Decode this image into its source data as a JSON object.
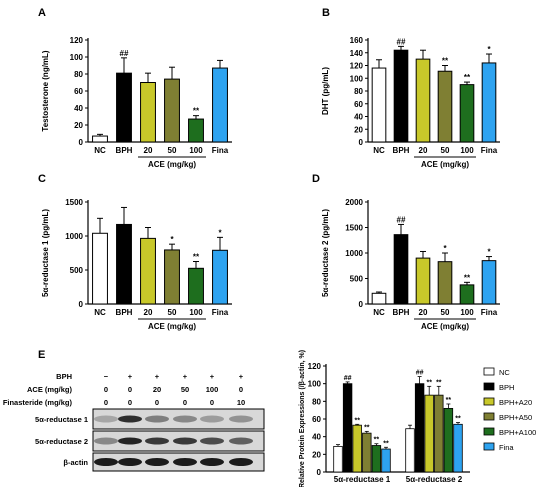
{
  "panels": {
    "A": "A",
    "B": "B",
    "C": "C",
    "D": "D",
    "E": "E"
  },
  "colors": {
    "NC": "#ffffff",
    "BPH": "#000000",
    "A20": "#c8c82a",
    "A50": "#7f7f33",
    "A100": "#1e6e1e",
    "Fina": "#2ea3f0"
  },
  "chart_data": [
    {
      "id": "A",
      "type": "bar",
      "ylabel": "Testosterone (ng/mL)",
      "categories": [
        "NC",
        "BPH",
        "20",
        "50",
        "100",
        "Fina"
      ],
      "group_label": "ACE (mg/kg)",
      "values": [
        7,
        81,
        70,
        74,
        27,
        87
      ],
      "errors": [
        2,
        18,
        11,
        14,
        4,
        9
      ],
      "marks": [
        "",
        "##",
        "",
        "",
        "**",
        ""
      ],
      "ylim": [
        0,
        120
      ],
      "yticks": [
        0,
        20,
        40,
        60,
        80,
        100,
        120
      ]
    },
    {
      "id": "B",
      "type": "bar",
      "ylabel": "DHT (pg/mL)",
      "categories": [
        "NC",
        "BPH",
        "20",
        "50",
        "100",
        "Fina"
      ],
      "group_label": "ACE (mg/kg)",
      "values": [
        116,
        144,
        130,
        111,
        90,
        124
      ],
      "errors": [
        13,
        6,
        14,
        9,
        4,
        14
      ],
      "marks": [
        "",
        "##",
        "",
        "**",
        "**",
        "*"
      ],
      "ylim": [
        0,
        160
      ],
      "yticks": [
        0,
        20,
        40,
        60,
        80,
        100,
        120,
        140,
        160
      ]
    },
    {
      "id": "C",
      "type": "bar",
      "ylabel": "5α-reductase 1 (pg/mL)",
      "categories": [
        "NC",
        "BPH",
        "20",
        "50",
        "100",
        "Fina"
      ],
      "group_label": "ACE (mg/kg)",
      "values": [
        1040,
        1170,
        965,
        795,
        525,
        790
      ],
      "errors": [
        220,
        250,
        160,
        85,
        100,
        190
      ],
      "marks": [
        "",
        "",
        "",
        "*",
        "**",
        "*"
      ],
      "ylim": [
        0,
        1500
      ],
      "yticks": [
        0,
        500,
        1000,
        1500
      ]
    },
    {
      "id": "D",
      "type": "bar",
      "ylabel": "5α-reductase 2 (pg/mL)",
      "categories": [
        "NC",
        "BPH",
        "20",
        "50",
        "100",
        "Fina"
      ],
      "group_label": "ACE (mg/kg)",
      "values": [
        210,
        1360,
        900,
        830,
        375,
        850
      ],
      "errors": [
        25,
        200,
        130,
        170,
        50,
        80
      ],
      "marks": [
        "",
        "##",
        "",
        "*",
        "**",
        "*"
      ],
      "ylim": [
        0,
        2000
      ],
      "yticks": [
        0,
        500,
        1000,
        1500,
        2000
      ]
    },
    {
      "id": "E",
      "type": "bar",
      "ylabel": "Relative Protein Expressions (/β-actin, %)",
      "categories": [
        "5α-reductase 1",
        "5α-reductase 2"
      ],
      "series": [
        {
          "name": "NC",
          "values": [
            29,
            49
          ],
          "errors": [
            2,
            4
          ],
          "marks": [
            "",
            ""
          ]
        },
        {
          "name": "BPH",
          "values": [
            100,
            100
          ],
          "errors": [
            2,
            8
          ],
          "marks": [
            "##",
            "##"
          ]
        },
        {
          "name": "BPH+A20",
          "values": [
            53,
            87
          ],
          "errors": [
            1,
            10
          ],
          "marks": [
            "**",
            "**"
          ]
        },
        {
          "name": "BPH+A50",
          "values": [
            44,
            87
          ],
          "errors": [
            2,
            10
          ],
          "marks": [
            "**",
            "**"
          ]
        },
        {
          "name": "BPH+A100",
          "values": [
            30,
            72
          ],
          "errors": [
            2,
            5
          ],
          "marks": [
            "**",
            "**"
          ]
        },
        {
          "name": "Fina",
          "values": [
            26,
            54
          ],
          "errors": [
            2,
            2
          ],
          "marks": [
            "**",
            "**"
          ]
        }
      ],
      "ylim": [
        0,
        120
      ],
      "yticks": [
        0,
        20,
        40,
        60,
        80,
        100,
        120
      ]
    }
  ],
  "blot": {
    "rows": [
      {
        "label": "BPH",
        "values": [
          "−",
          "+",
          "+",
          "+",
          "+",
          "+"
        ]
      },
      {
        "label": "ACE (mg/kg)",
        "values": [
          "0",
          "0",
          "20",
          "50",
          "100",
          "0"
        ]
      },
      {
        "label": "Finasteride (mg/kg)",
        "values": [
          "0",
          "0",
          "0",
          "0",
          "0",
          "10"
        ]
      }
    ],
    "bands": [
      "5α-reductase 1",
      "5α-reductase 2",
      "β-actin"
    ]
  }
}
